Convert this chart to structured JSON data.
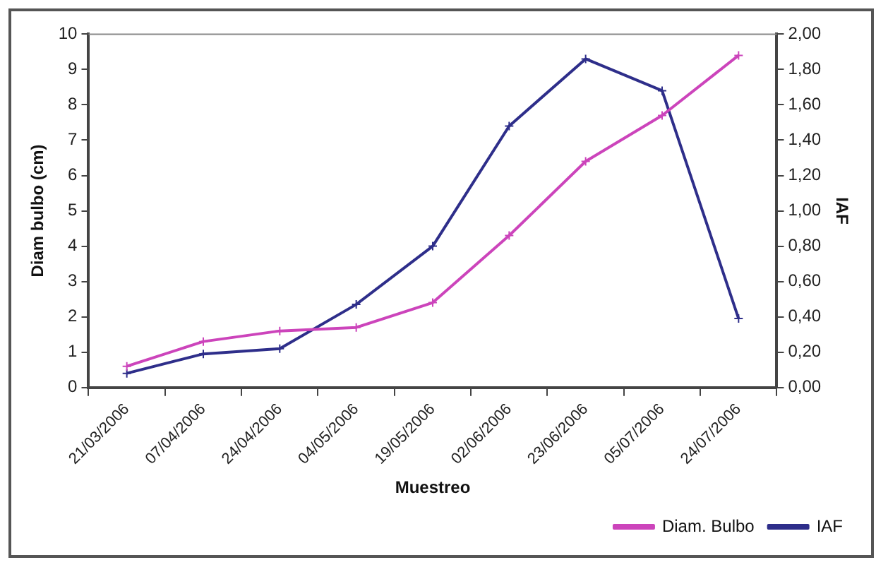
{
  "chart_data": {
    "type": "line",
    "xlabel": "Muestreo",
    "ylabel": "Diam bulbo (cm)",
    "y2label": "IAF",
    "categories": [
      "21/03/2006",
      "07/04/2006",
      "24/04/2006",
      "04/05/2006",
      "19/05/2006",
      "02/06/2006",
      "23/06/2006",
      "05/07/2006",
      "24/07/2006"
    ],
    "series": [
      {
        "name": "Diam. Bulbo",
        "color": "#cc44bb",
        "values": [
          0.6,
          1.3,
          1.6,
          1.7,
          2.4,
          4.3,
          6.4,
          7.7,
          9.4
        ]
      },
      {
        "name": "IAF",
        "color": "#2e2e8a",
        "axis": "y2",
        "values": [
          0.08,
          0.19,
          0.22,
          0.47,
          0.8,
          1.48,
          1.86,
          1.68,
          0.39
        ]
      }
    ],
    "ylim": [
      0,
      10
    ],
    "yticks": [
      0,
      1,
      2,
      3,
      4,
      5,
      6,
      7,
      8,
      9,
      10
    ],
    "y2lim": [
      0,
      2
    ],
    "y2ticks": [
      {
        "value": 0,
        "label": "0,00"
      },
      {
        "value": 0.2,
        "label": "0,20"
      },
      {
        "value": 0.4,
        "label": "0,40"
      },
      {
        "value": 0.6,
        "label": "0,60"
      },
      {
        "value": 0.8,
        "label": "0,80"
      },
      {
        "value": 1,
        "label": "1,00"
      },
      {
        "value": 1.2,
        "label": "1,20"
      },
      {
        "value": 1.4,
        "label": "1,40"
      },
      {
        "value": 1.6,
        "label": "1,60"
      },
      {
        "value": 1.8,
        "label": "1,80"
      },
      {
        "value": 2,
        "label": "2,00"
      }
    ],
    "grid": false,
    "legend": "bottom right",
    "marker": "cross",
    "line_style": "solid"
  }
}
